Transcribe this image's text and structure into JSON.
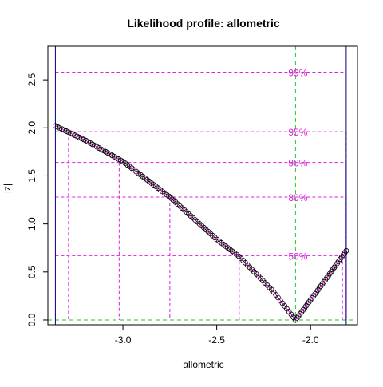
{
  "chart_data": {
    "type": "line",
    "title": "Likelihood profile: allometric",
    "xlabel": "allometric",
    "ylabel": "|z|",
    "xlim": [
      -3.4,
      -1.75
    ],
    "ylim": [
      -0.05,
      2.85
    ],
    "x_ticks": [
      -3.0,
      -2.5,
      -2.0
    ],
    "x_tick_labels": [
      "-3.0",
      "-2.5",
      "-2.0"
    ],
    "y_ticks": [
      0.0,
      0.5,
      1.0,
      1.5,
      2.0,
      2.5
    ],
    "y_tick_labels": [
      "0.0",
      "0.5",
      "1.0",
      "1.5",
      "2.0",
      "2.5"
    ],
    "mle": -2.08,
    "x_start": -3.36,
    "x_end": -1.81,
    "profile_left": {
      "x": [
        -3.36,
        -3.2,
        -3.0,
        -2.75,
        -2.5,
        -2.38,
        -2.2,
        -2.08
      ],
      "y": [
        2.02,
        1.87,
        1.65,
        1.28,
        0.84,
        0.66,
        0.3,
        0.0
      ]
    },
    "profile_right": {
      "x": [
        -2.08,
        -1.95,
        -1.81
      ],
      "y": [
        0.0,
        0.34,
        0.72
      ]
    },
    "confidence_levels": [
      {
        "label": "99%",
        "z": 2.58,
        "lower": null,
        "upper": null
      },
      {
        "label": "95%",
        "z": 1.96,
        "lower": -3.29,
        "upper": -1.81
      },
      {
        "label": "90%",
        "z": 1.64,
        "lower": -3.02,
        "upper": -1.81
      },
      {
        "label": "80%",
        "z": 1.28,
        "lower": -2.75,
        "upper": -1.81
      },
      {
        "label": "50%",
        "z": 0.67,
        "lower": -2.38,
        "upper": -1.83
      }
    ],
    "colors": {
      "profile_points": "#000000",
      "profile_line": "#ff00ff",
      "confidence": "#dd22dd",
      "mle_line": "#22cc22",
      "boundary": "#000080",
      "box": "#000000"
    }
  }
}
